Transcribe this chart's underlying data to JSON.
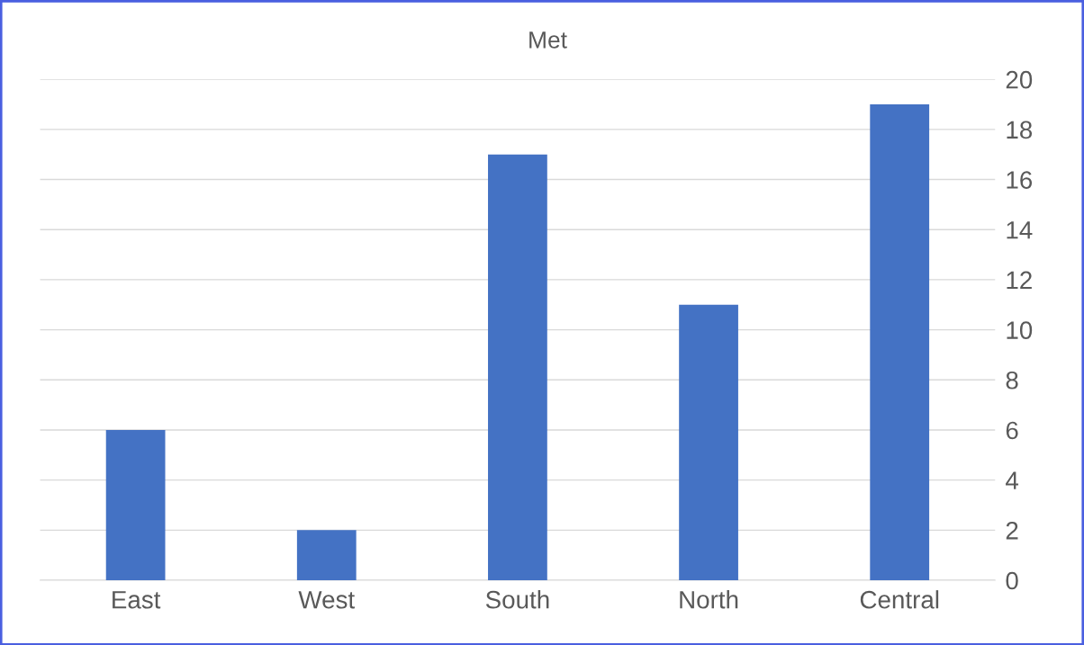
{
  "chart_data": {
    "type": "bar",
    "title": "Met",
    "categories": [
      "East",
      "West",
      "South",
      "North",
      "Central"
    ],
    "values": [
      6,
      2,
      17,
      11,
      19
    ],
    "color": "#4472c4",
    "ylim": [
      0,
      20
    ],
    "yticks": [
      0,
      2,
      4,
      6,
      8,
      10,
      12,
      14,
      16,
      18,
      20
    ],
    "grid": "y",
    "legend": false
  }
}
